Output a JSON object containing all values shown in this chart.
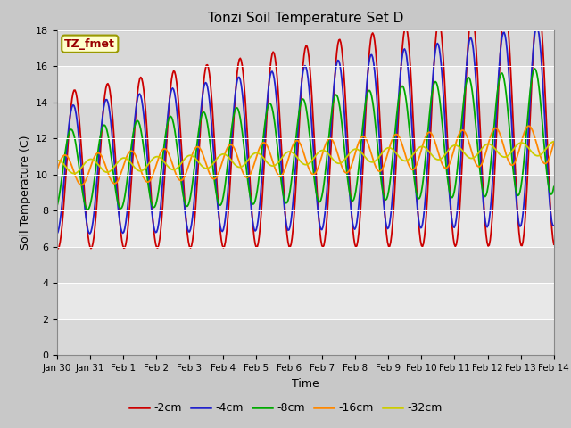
{
  "title": "Tonzi Soil Temperature Set D",
  "xlabel": "Time",
  "ylabel": "Soil Temperature (C)",
  "ylim": [
    0,
    18
  ],
  "yticks": [
    0,
    2,
    4,
    6,
    8,
    10,
    12,
    14,
    16,
    18
  ],
  "legend_label": "TZ_fmet",
  "series_labels": [
    "-2cm",
    "-4cm",
    "-8cm",
    "-16cm",
    "-32cm"
  ],
  "series_colors": [
    "#cc0000",
    "#2222cc",
    "#00aa00",
    "#ff8800",
    "#cccc00"
  ],
  "title_fontsize": 11,
  "axis_fontsize": 9,
  "tick_fontsize": 8,
  "figsize": [
    6.4,
    4.8
  ],
  "dpi": 100,
  "num_points": 500,
  "end_day": 15.0,
  "band_colors": [
    "#d0d0d0",
    "#c0c0c0"
  ],
  "fig_bg": "#c8c8c8",
  "ax_bg": "#e0e0e0"
}
